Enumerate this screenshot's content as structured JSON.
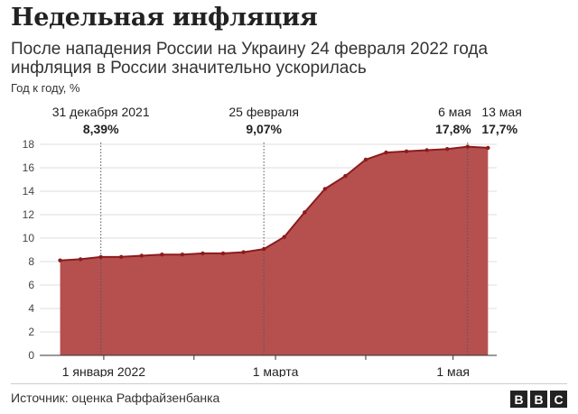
{
  "header": {
    "title": "Недельная инфляция",
    "subtitle": "После нападения России на Украину 24 февраля 2022 года инфляция в России значительно ускорилась",
    "ylabel": "Год к году, %"
  },
  "footer": {
    "source": "Источник: оценка Раффайзенбанка",
    "logo_letters": [
      "B",
      "B",
      "C"
    ]
  },
  "chart_data": {
    "type": "area",
    "ylabel": "Год к году, %",
    "ylim": [
      0,
      18
    ],
    "yticks": [
      0,
      2,
      4,
      6,
      8,
      10,
      12,
      14,
      16,
      18
    ],
    "x_range": [
      "2021-12-10",
      "2022-05-16"
    ],
    "x_ticks": [
      {
        "date": "2022-01-01",
        "label": "1 января 2022"
      },
      {
        "date": "2022-03-01",
        "label": "1 марта"
      },
      {
        "date": "2022-05-01",
        "label": "1 мая"
      }
    ],
    "minor_x_ticks": [
      "2022-02-01",
      "2022-04-01"
    ],
    "grid": "horizontal",
    "area_color": "#b5504f",
    "line_color": "#8c1c1c",
    "points": [
      {
        "date": "2021-12-17",
        "value": 8.1
      },
      {
        "date": "2021-12-24",
        "value": 8.2
      },
      {
        "date": "2021-12-31",
        "value": 8.39
      },
      {
        "date": "2022-01-07",
        "value": 8.4
      },
      {
        "date": "2022-01-14",
        "value": 8.5
      },
      {
        "date": "2022-01-21",
        "value": 8.6
      },
      {
        "date": "2022-01-28",
        "value": 8.6
      },
      {
        "date": "2022-02-04",
        "value": 8.7
      },
      {
        "date": "2022-02-11",
        "value": 8.7
      },
      {
        "date": "2022-02-18",
        "value": 8.8
      },
      {
        "date": "2022-02-25",
        "value": 9.07
      },
      {
        "date": "2022-03-04",
        "value": 10.1
      },
      {
        "date": "2022-03-11",
        "value": 12.2
      },
      {
        "date": "2022-03-18",
        "value": 14.2
      },
      {
        "date": "2022-03-25",
        "value": 15.3
      },
      {
        "date": "2022-04-01",
        "value": 16.7
      },
      {
        "date": "2022-04-08",
        "value": 17.3
      },
      {
        "date": "2022-04-15",
        "value": 17.4
      },
      {
        "date": "2022-04-22",
        "value": 17.5
      },
      {
        "date": "2022-04-29",
        "value": 17.6
      },
      {
        "date": "2022-05-06",
        "value": 17.8
      },
      {
        "date": "2022-05-13",
        "value": 17.7
      }
    ],
    "annotations": [
      {
        "date": "2021-12-31",
        "label": "31 декабря 2021",
        "value_label": "8,39%",
        "line": true,
        "align": "middle"
      },
      {
        "date": "2022-02-25",
        "label": "25 февраля",
        "value_label": "9,07%",
        "line": true,
        "align": "middle"
      },
      {
        "date": "2022-05-06",
        "label": "6 мая",
        "value_label": "17,8%",
        "line": true,
        "align": "end"
      },
      {
        "date": "2022-05-13",
        "label": "13 мая",
        "value_label": "17,7%",
        "line": false,
        "align": "start"
      }
    ]
  }
}
